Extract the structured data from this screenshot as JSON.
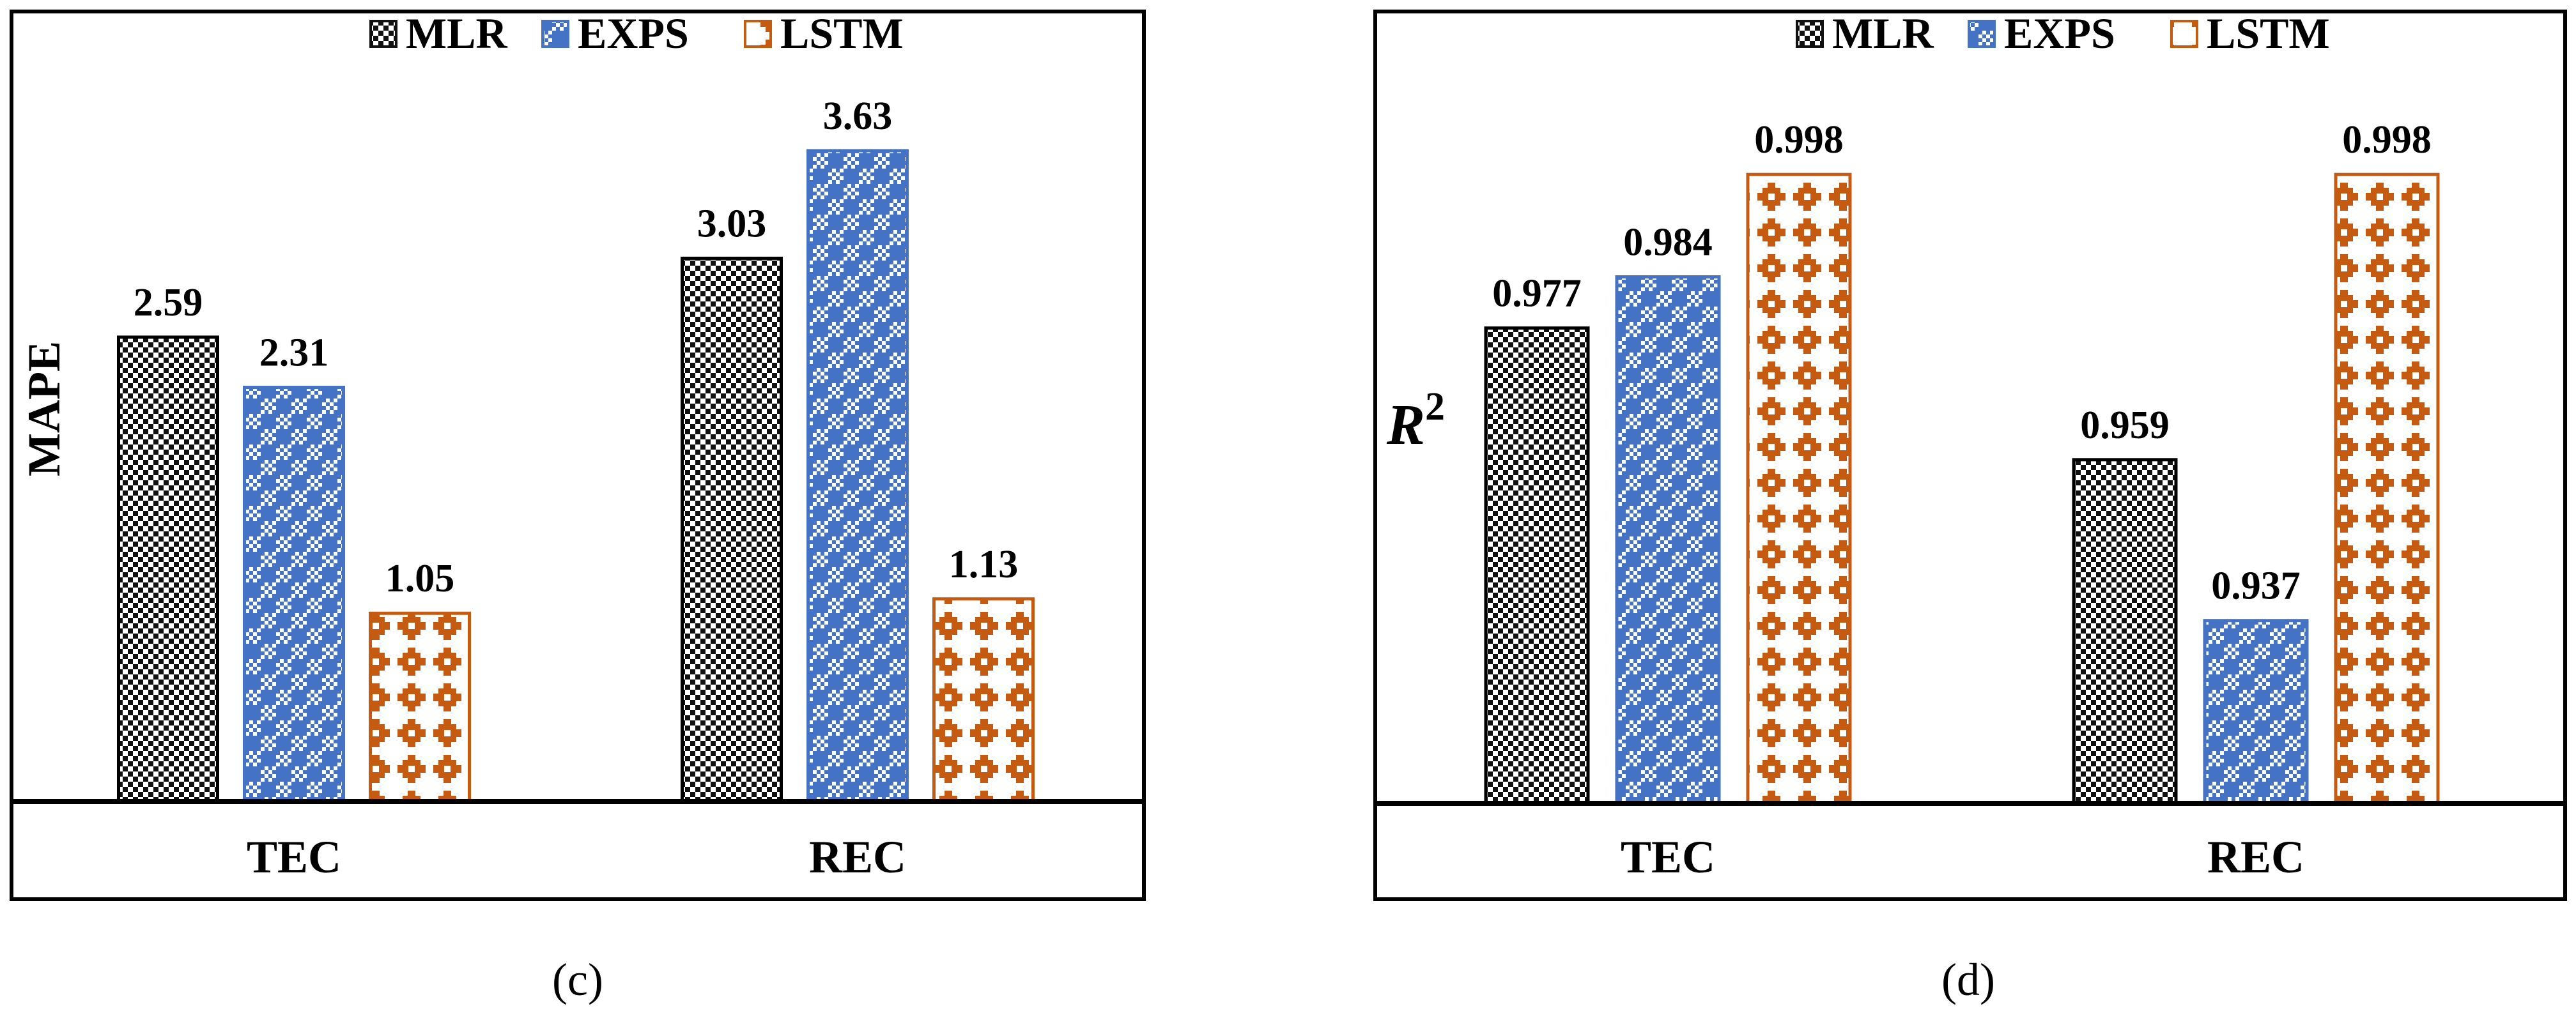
{
  "colors": {
    "mlr": "#111111",
    "exps": "#4472C4",
    "lstm": "#C55A11"
  },
  "chart_data": [
    {
      "type": "bar",
      "panel": "(c)",
      "title": "",
      "xlabel": "",
      "ylabel": "MAPE",
      "categories": [
        "TEC",
        "REC"
      ],
      "series": [
        {
          "name": "MLR",
          "values": [
            2.59,
            3.03
          ],
          "labels": [
            "2.59",
            "3.03"
          ]
        },
        {
          "name": "EXPS",
          "values": [
            2.31,
            3.63
          ],
          "labels": [
            "2.31",
            "3.63"
          ]
        },
        {
          "name": "LSTM",
          "values": [
            1.05,
            1.13
          ],
          "labels": [
            "1.05",
            "1.13"
          ]
        }
      ],
      "ylim": [
        0,
        4.15
      ],
      "grid": false,
      "legend": "top-center"
    },
    {
      "type": "bar",
      "panel": "(d)",
      "title": "",
      "xlabel": "",
      "ylabel": "R",
      "ylabel_superscript": "2",
      "categories": [
        "TEC",
        "REC"
      ],
      "series": [
        {
          "name": "MLR",
          "values": [
            0.977,
            0.959
          ],
          "labels": [
            "0.977",
            "0.959"
          ]
        },
        {
          "name": "EXPS",
          "values": [
            0.984,
            0.937
          ],
          "labels": [
            "0.984",
            "0.937"
          ]
        },
        {
          "name": "LSTM",
          "values": [
            0.998,
            0.998
          ],
          "labels": [
            "0.998",
            "0.998"
          ]
        }
      ],
      "ylim": [
        0.912,
        1.014
      ],
      "grid": false,
      "legend": "top-center"
    }
  ]
}
